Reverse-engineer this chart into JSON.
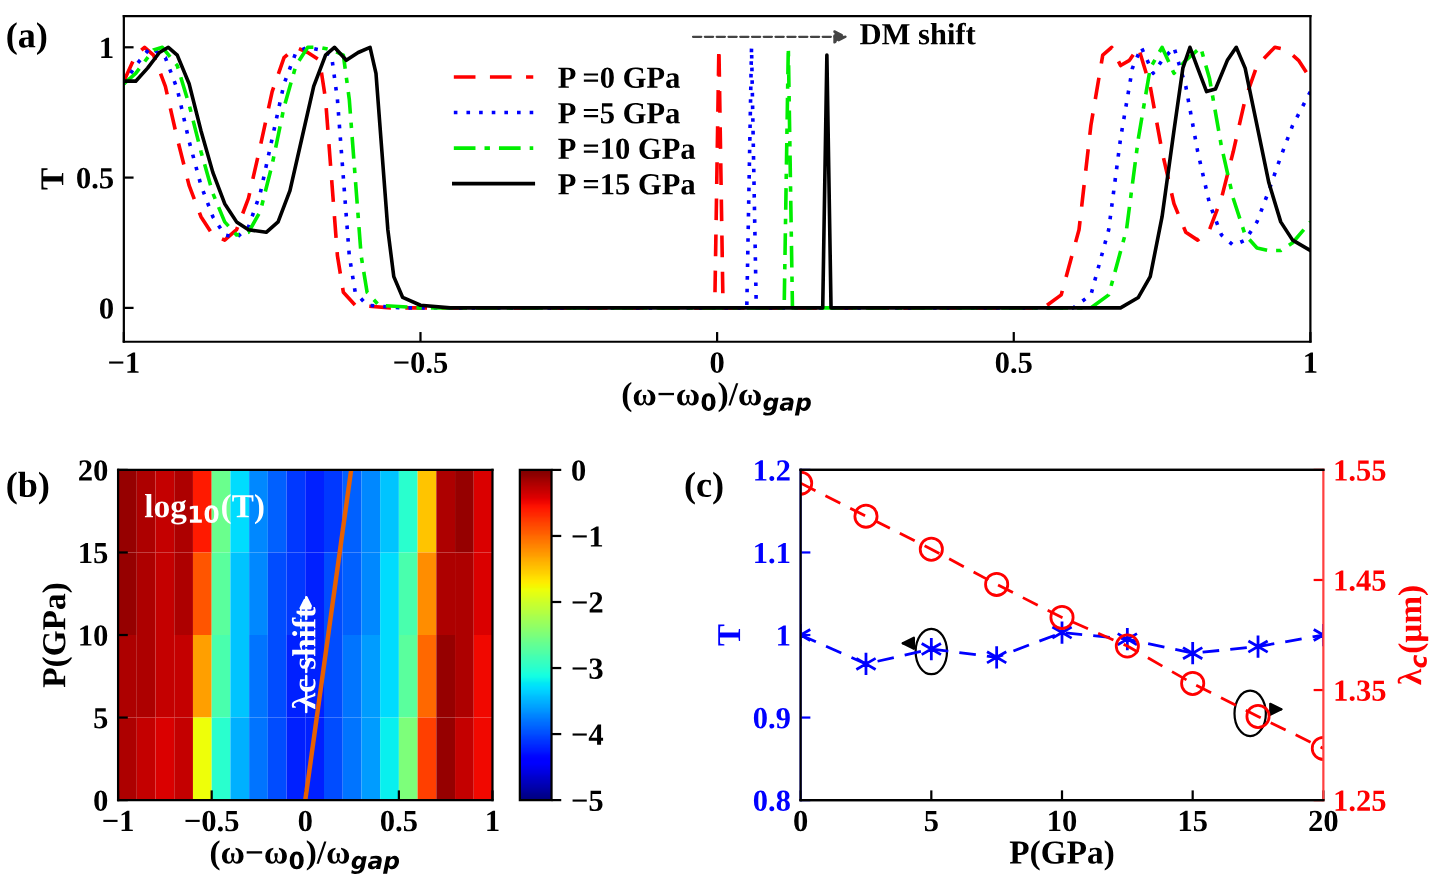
{
  "chart_data": [
    {
      "type": "line",
      "title": "(a)",
      "xlabel": "(ω−ω$_{0}$)/ω$_{gap}$",
      "ylabel": "T",
      "xlim": [
        -1,
        1
      ],
      "ylim": [
        -0.13,
        1.12
      ],
      "xticks": [
        -1,
        -0.5,
        0,
        0.5,
        1
      ],
      "yticks": [
        0,
        0.5,
        1
      ],
      "legend": "top",
      "grid": false,
      "annotations": [
        "DM shift"
      ],
      "series": [
        {
          "name": "P =0 GPa",
          "color": "#ff0000",
          "line_style": "dashed",
          "x": [
            -1,
            -0.98,
            -0.965,
            -0.95,
            -0.93,
            -0.91,
            -0.89,
            -0.87,
            -0.85,
            -0.83,
            -0.81,
            -0.79,
            -0.77,
            -0.75,
            -0.73,
            -0.71,
            -0.69,
            -0.67,
            -0.66,
            -0.65,
            -0.64,
            -0.63,
            -0.61,
            -0.55,
            -0.004,
            0.003,
            0.01,
            0.55,
            0.58,
            0.61,
            0.63,
            0.65,
            0.665,
            0.68,
            0.695,
            0.71,
            0.73,
            0.75,
            0.77,
            0.79,
            0.81,
            0.83,
            0.85,
            0.87,
            0.89,
            0.91,
            0.94,
            0.96,
            0.98,
            1.0
          ],
          "values": [
            0.87,
            0.97,
            1.0,
            0.97,
            0.85,
            0.65,
            0.47,
            0.35,
            0.28,
            0.26,
            0.3,
            0.42,
            0.62,
            0.83,
            0.96,
            1.0,
            0.98,
            0.95,
            0.8,
            0.5,
            0.2,
            0.06,
            0.01,
            0,
            0,
            1,
            0,
            0,
            0.05,
            0.3,
            0.7,
            0.97,
            1,
            0.93,
            0.95,
            1.0,
            0.85,
            0.6,
            0.4,
            0.29,
            0.26,
            0.3,
            0.42,
            0.6,
            0.8,
            0.93,
            1.0,
            0.99,
            0.95,
            0.88
          ]
        },
        {
          "name": "P =5 GPa",
          "color": "#0000ff",
          "line_style": "dotted",
          "x": [
            -1,
            -0.98,
            -0.955,
            -0.93,
            -0.91,
            -0.89,
            -0.87,
            -0.85,
            -0.83,
            -0.81,
            -0.79,
            -0.77,
            -0.75,
            -0.73,
            -0.71,
            -0.69,
            -0.67,
            -0.65,
            -0.64,
            -0.63,
            -0.62,
            -0.61,
            -0.59,
            -0.53,
            0.05,
            0.058,
            0.066,
            0.6,
            0.63,
            0.66,
            0.68,
            0.7,
            0.715,
            0.735,
            0.75,
            0.77,
            0.79,
            0.81,
            0.83,
            0.85,
            0.87,
            0.89,
            0.91,
            0.93,
            0.95,
            0.97,
            1.0
          ],
          "values": [
            0.86,
            0.93,
            1.0,
            0.96,
            0.84,
            0.64,
            0.47,
            0.35,
            0.28,
            0.27,
            0.31,
            0.44,
            0.65,
            0.86,
            0.98,
            1.0,
            0.99,
            0.97,
            0.8,
            0.5,
            0.2,
            0.06,
            0.01,
            0,
            0,
            1,
            0,
            0,
            0.05,
            0.3,
            0.65,
            0.92,
            1.0,
            0.9,
            0.95,
            1.0,
            0.85,
            0.6,
            0.4,
            0.28,
            0.24,
            0.26,
            0.33,
            0.45,
            0.58,
            0.7,
            0.83
          ]
        },
        {
          "name": "P =10 GPa",
          "color": "#00ee00",
          "line_style": "dashdot",
          "x": [
            -1,
            -0.98,
            -0.95,
            -0.935,
            -0.91,
            -0.89,
            -0.87,
            -0.85,
            -0.83,
            -0.81,
            -0.79,
            -0.77,
            -0.75,
            -0.73,
            -0.71,
            -0.69,
            -0.67,
            -0.65,
            -0.63,
            -0.62,
            -0.61,
            -0.6,
            -0.59,
            -0.57,
            -0.5,
            0.113,
            0.12,
            0.127,
            0.63,
            0.66,
            0.69,
            0.71,
            0.73,
            0.75,
            0.77,
            0.79,
            0.815,
            0.83,
            0.85,
            0.87,
            0.89,
            0.91,
            0.93,
            0.95,
            0.97,
            1.0
          ],
          "values": [
            0.86,
            0.9,
            0.99,
            1.0,
            0.93,
            0.78,
            0.6,
            0.44,
            0.33,
            0.28,
            0.29,
            0.37,
            0.55,
            0.77,
            0.93,
            1.0,
            1.0,
            0.99,
            0.97,
            0.8,
            0.5,
            0.2,
            0.06,
            0.01,
            0,
            0,
            1,
            0,
            0,
            0.05,
            0.3,
            0.65,
            0.92,
            1.0,
            0.9,
            0.95,
            1.0,
            0.88,
            0.62,
            0.42,
            0.28,
            0.23,
            0.22,
            0.22,
            0.25,
            0.33
          ]
        },
        {
          "name": "P =15 GPa",
          "color": "#000000",
          "line_style": "solid",
          "x": [
            -1,
            -0.98,
            -0.96,
            -0.94,
            -0.925,
            -0.91,
            -0.89,
            -0.87,
            -0.85,
            -0.83,
            -0.81,
            -0.79,
            -0.76,
            -0.74,
            -0.72,
            -0.7,
            -0.68,
            -0.66,
            -0.645,
            -0.625,
            -0.605,
            -0.585,
            -0.575,
            -0.565,
            -0.555,
            -0.545,
            -0.53,
            -0.5,
            -0.45,
            0.178,
            0.185,
            0.192,
            0.68,
            0.71,
            0.73,
            0.75,
            0.77,
            0.785,
            0.797,
            0.81,
            0.825,
            0.84,
            0.86,
            0.875,
            0.89,
            0.91,
            0.93,
            0.95,
            0.97,
            1.0
          ],
          "values": [
            0.87,
            0.87,
            0.92,
            0.98,
            1.0,
            0.97,
            0.86,
            0.68,
            0.52,
            0.4,
            0.33,
            0.3,
            0.29,
            0.33,
            0.45,
            0.65,
            0.85,
            0.97,
            1.0,
            0.95,
            0.98,
            1.0,
            0.9,
            0.6,
            0.3,
            0.12,
            0.04,
            0.01,
            0,
            0,
            0.97,
            0,
            0,
            0.04,
            0.12,
            0.35,
            0.68,
            0.92,
            1.0,
            0.92,
            0.83,
            0.84,
            0.95,
            1.0,
            0.92,
            0.7,
            0.48,
            0.33,
            0.26,
            0.22
          ]
        }
      ]
    },
    {
      "type": "heatmap",
      "title": "(b)",
      "xlabel": "(ω−ω$_{0}$)/ω$_{gap}$",
      "ylabel": "P(GPa)",
      "xlim": [
        -1,
        1
      ],
      "ylim": [
        0,
        20
      ],
      "xticks": [
        -1,
        -0.5,
        0,
        0.5,
        1
      ],
      "yticks": [
        0,
        5,
        10,
        15,
        20
      ],
      "clim": [
        -5,
        0
      ],
      "cticks": [
        0,
        -1,
        -2,
        -3,
        -4,
        -5
      ],
      "annotations": [
        "log$_{10}$(T)",
        "λc shift"
      ],
      "x": [
        -0.95,
        -0.85,
        -0.75,
        -0.65,
        -0.55,
        -0.45,
        -0.35,
        -0.25,
        -0.15,
        -0.05,
        0.05,
        0.15,
        0.25,
        0.35,
        0.45,
        0.55,
        0.65,
        0.75,
        0.85,
        0.95
      ],
      "y": [
        17.5,
        12.5,
        7.5,
        2.5
      ],
      "cells": [
        [
          -0.1,
          -0.2,
          -0.3,
          -0.2,
          -0.6,
          -2.6,
          -3.3,
          -3.7,
          -3.9,
          -4.1,
          -4.2,
          -4.1,
          -3.9,
          -3.7,
          -3.4,
          -3.0,
          -1.5,
          -0.2,
          -0.1,
          -0.4
        ],
        [
          -0.1,
          -0.2,
          -0.3,
          -0.2,
          -0.9,
          -2.7,
          -3.4,
          -3.7,
          -4.0,
          -4.1,
          -4.2,
          -4.0,
          -3.9,
          -3.7,
          -3.3,
          -2.8,
          -1.2,
          -0.2,
          -0.2,
          -0.4
        ],
        [
          -0.2,
          -0.2,
          -0.3,
          -0.3,
          -1.3,
          -2.8,
          -3.4,
          -3.8,
          -4.0,
          -4.2,
          -4.2,
          -4.0,
          -3.8,
          -3.6,
          -3.3,
          -2.7,
          -1.0,
          -0.1,
          -0.2,
          -0.5
        ],
        [
          -0.2,
          -0.3,
          -0.4,
          -0.3,
          -1.8,
          -3.0,
          -3.5,
          -3.8,
          -4.0,
          -4.2,
          -4.2,
          -4.0,
          -3.8,
          -3.6,
          -3.2,
          -2.5,
          -0.8,
          -0.1,
          -0.3,
          -0.5
        ]
      ],
      "series": [
        {
          "type": "line",
          "color": "#e86000",
          "x": [
            0,
            0.245
          ],
          "values": [
            0,
            20
          ]
        }
      ]
    },
    {
      "type": "line",
      "title": "(c)",
      "xlabel": "P(GPa)",
      "ylabel": "T",
      "y2label": "λ$_{c}$(μm)",
      "x": [
        0,
        2.5,
        5,
        7.5,
        10,
        12.5,
        15,
        17.5,
        20
      ],
      "xlim": [
        0,
        20
      ],
      "ylim": [
        0.8,
        1.2
      ],
      "y2lim": [
        1.25,
        1.55
      ],
      "xticks": [
        0,
        5,
        10,
        15,
        20
      ],
      "yticks": [
        0.8,
        0.9,
        1,
        1.1,
        1.2
      ],
      "y2ticks": [
        1.25,
        1.35,
        1.45,
        1.55
      ],
      "grid": false,
      "series": [
        {
          "color": "#0000ff",
          "marker": "cross",
          "line_style": "dashed",
          "values": [
            1.0,
            0.965,
            0.983,
            0.973,
            1.003,
            0.995,
            0.978,
            0.986,
            1.0
          ]
        },
        {
          "color": "#ff0000",
          "marker": "circle",
          "line_style": "dashed",
          "axis": "y2",
          "values": [
            1.538,
            1.508,
            1.478,
            1.446,
            1.416,
            1.39,
            1.356,
            1.326,
            1.297
          ]
        }
      ]
    }
  ]
}
